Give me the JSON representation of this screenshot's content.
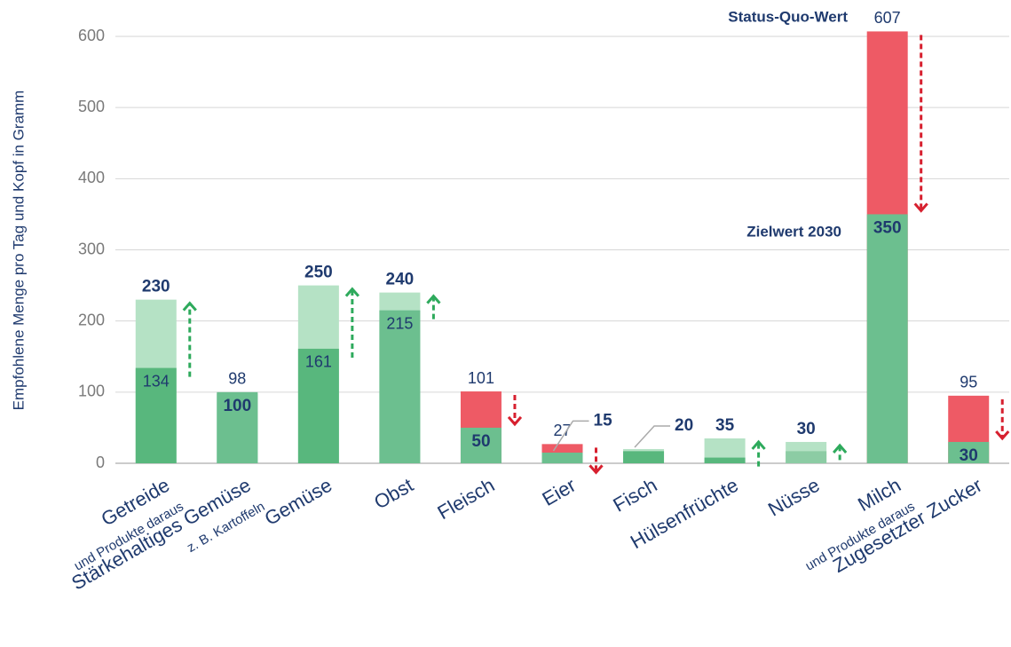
{
  "chart_data": {
    "type": "bar",
    "y_label": "Empfohlene Menge pro Tag und Kopf in Gramm",
    "annotations": [
      "Status-Quo-Wert",
      "Zielwert 2030"
    ],
    "categories": [
      "Getreide",
      "Stärkehaltiges Gemüse",
      "Gemüse",
      "Obst",
      "Fleisch",
      "Eier",
      "Fisch",
      "Hülsenfrüchte",
      "Nüsse",
      "Milch",
      "Zugesetzter Zucker"
    ],
    "category_notes": [
      "und Produkte daraus",
      "z. B. Kartoffeln",
      null,
      null,
      null,
      null,
      null,
      null,
      null,
      "und Produkte daraus",
      null
    ],
    "series": [
      {
        "name": "Status-Quo-Wert",
        "values": [
          134,
          98,
          161,
          215,
          101,
          27,
          17,
          8,
          17,
          607,
          95
        ],
        "value_labels": [
          134,
          98,
          161,
          215,
          101,
          27,
          null,
          null,
          null,
          607,
          95
        ],
        "colors": [
          "#58b77d",
          "#6cbf8f",
          "#58b77d",
          "#6cbf8f",
          "#ee5a65",
          "#ee5a65",
          "#58b77d",
          "#58b77d",
          "#8ccca4",
          "#ee5a65",
          "#ee5a65"
        ]
      },
      {
        "name": "Zielwert 2030",
        "values": [
          230,
          100,
          250,
          240,
          50,
          15,
          20,
          35,
          30,
          350,
          30
        ],
        "value_labels": [
          230,
          100,
          250,
          240,
          50,
          15,
          20,
          35,
          30,
          350,
          30
        ],
        "colors": [
          "#b5e2c5",
          "#6cbf8f",
          "#b5e2c5",
          "#b5e2c5",
          "#6cbf8f",
          "#6cbf8f",
          "#b5e2c5",
          "#b5e2c5",
          "#b5e2c5",
          "#6cbf8f",
          "#6cbf8f"
        ]
      }
    ],
    "ylim": [
      0,
      615
    ],
    "yticks": [
      0,
      100,
      200,
      300,
      400,
      500,
      600
    ],
    "grid": true
  }
}
